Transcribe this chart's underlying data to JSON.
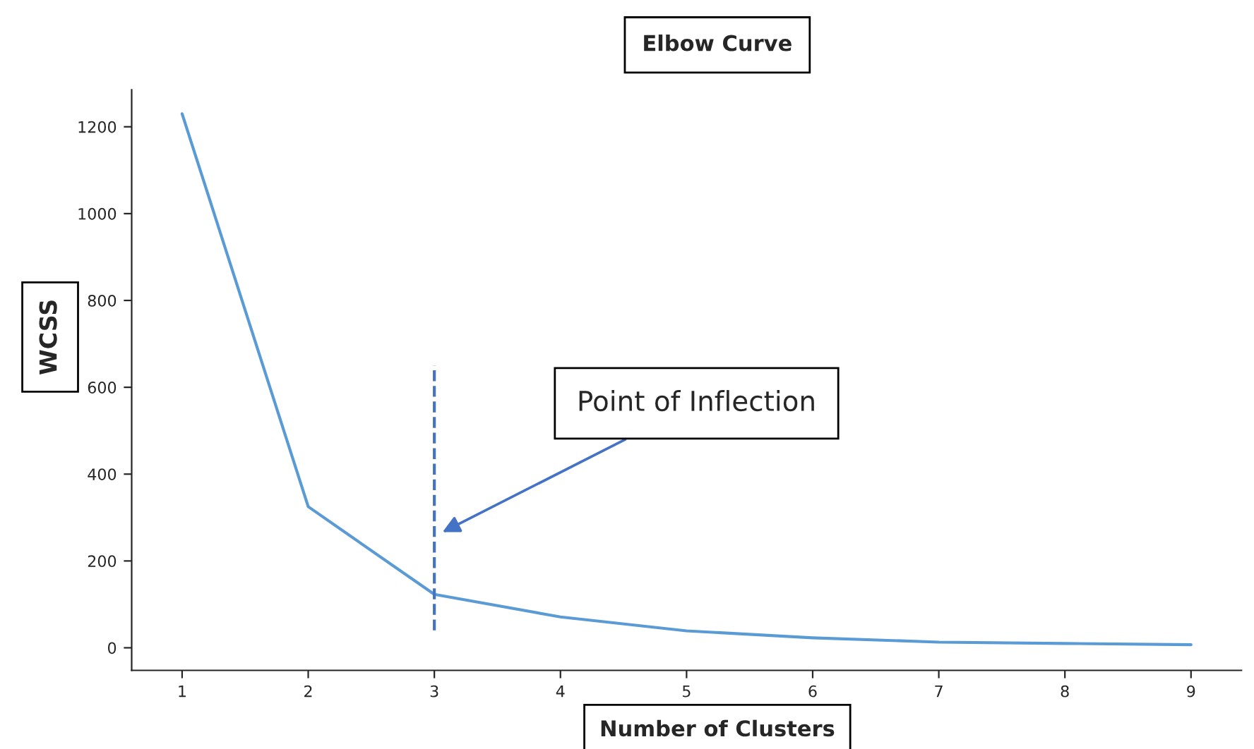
{
  "chart_data": {
    "type": "line",
    "title": "Elbow Curve",
    "xlabel": "Number of Clusters",
    "ylabel": "WCSS",
    "x": [
      1,
      2,
      3,
      4,
      5,
      6,
      7,
      8,
      9
    ],
    "series": [
      {
        "color": "#5b9bd5",
        "values": [
          1230,
          325,
          123,
          71,
          39,
          23,
          13,
          10,
          7
        ]
      },
      {
        "color": "#4472c4",
        "x": [
          3,
          3
        ],
        "values": [
          40,
          650
        ],
        "line_style": "dashed"
      }
    ],
    "xlim": [
      0.6,
      9.4
    ],
    "ylim": [
      -52,
      1285
    ],
    "xticks": [
      1,
      2,
      3,
      4,
      5,
      6,
      7,
      8,
      9
    ],
    "yticks": [
      0,
      200,
      400,
      600,
      800,
      1000,
      1200
    ],
    "annotations": [
      "Point of Inflection"
    ],
    "grid": false,
    "legend": false,
    "marker": "none",
    "line_style": "solid"
  }
}
